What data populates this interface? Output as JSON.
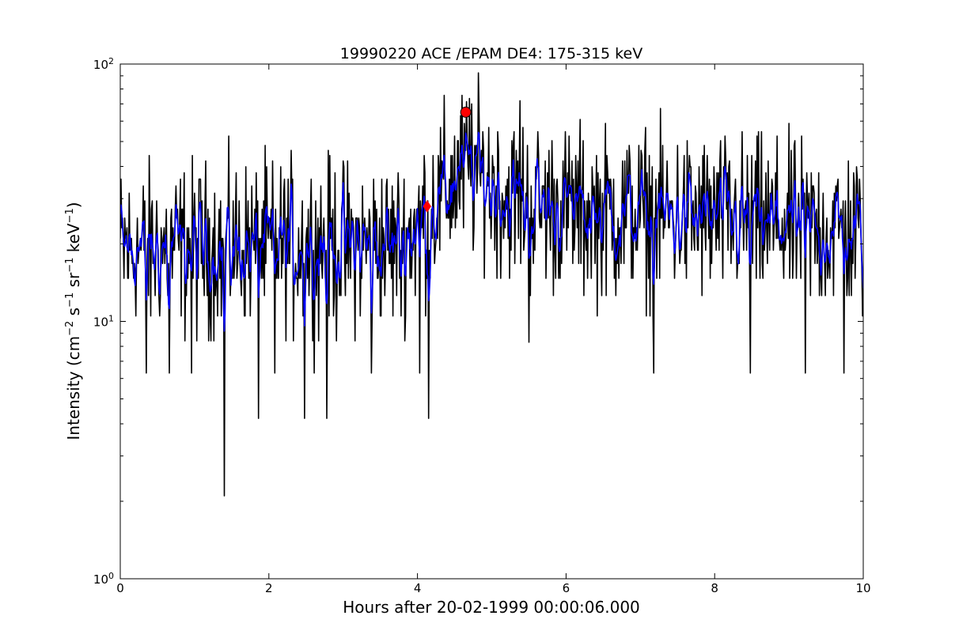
{
  "chart_data": {
    "type": "line",
    "title": "19990220 ACE /EPAM DE4: 175-315 keV",
    "xlabel": "Hours after 20-02-1999 00:00:06.000",
    "ylabel": "Intensity (cm-2 s-1 sr-1 keV-1)",
    "ylabel_parts": {
      "prefix": "Intensity (cm",
      "exp1": "−2",
      "s": " s",
      "exp2": "−1",
      "sr": " sr",
      "exp3": "−1",
      "kev": " keV",
      "exp4": "−1",
      "suffix": ")"
    },
    "xlim": [
      0,
      10
    ],
    "ylim": [
      1,
      100
    ],
    "yscale": "log",
    "xticks": [
      "0",
      "2",
      "4",
      "6",
      "8",
      "10"
    ],
    "yticks": [
      {
        "base": "10",
        "exp": "0"
      },
      {
        "base": "10",
        "exp": "1"
      },
      {
        "base": "10",
        "exp": "2"
      }
    ],
    "grid": false,
    "series": [
      {
        "color": "#000000",
        "sample_step_hours": 0.01,
        "generated": true,
        "baseline": [
          [
            0,
            19
          ],
          [
            3.8,
            20
          ],
          [
            4.3,
            30
          ],
          [
            4.7,
            40
          ],
          [
            5.2,
            30
          ],
          [
            6.0,
            27
          ],
          [
            8.0,
            25
          ],
          [
            10.0,
            22
          ]
        ],
        "spread": 0.55,
        "notable_points": [
          [
            1.4,
            2.1
          ],
          [
            1.86,
            4.2
          ],
          [
            2.48,
            4.2
          ],
          [
            2.78,
            4.2
          ],
          [
            4.15,
            4.2
          ],
          [
            0.35,
            6.3
          ],
          [
            0.66,
            6.3
          ],
          [
            0.96,
            6.3
          ],
          [
            2.08,
            6.3
          ],
          [
            3.38,
            6.3
          ],
          [
            4.03,
            6.3
          ],
          [
            7.18,
            6.3
          ],
          [
            8.48,
            6.3
          ],
          [
            9.22,
            6.3
          ],
          [
            9.74,
            6.3
          ],
          [
            5.38,
            72
          ],
          [
            4.73,
            70
          ],
          [
            5.5,
            8.3
          ]
        ]
      },
      {
        "color": "#0000ff",
        "sample_step_hours": 0.01,
        "generated": true,
        "baseline": [
          [
            0,
            19
          ],
          [
            3.8,
            20
          ],
          [
            4.3,
            30
          ],
          [
            4.7,
            40
          ],
          [
            5.2,
            30
          ],
          [
            6.0,
            27
          ],
          [
            8.0,
            25
          ],
          [
            10.0,
            22
          ]
        ],
        "spread": 0.22
      }
    ],
    "markers": [
      {
        "shape": "circle",
        "color": "#ff0000",
        "x": 4.65,
        "y": 65
      },
      {
        "shape": "diamond",
        "color": "#ff0000",
        "x": 4.13,
        "y": 28
      }
    ]
  }
}
